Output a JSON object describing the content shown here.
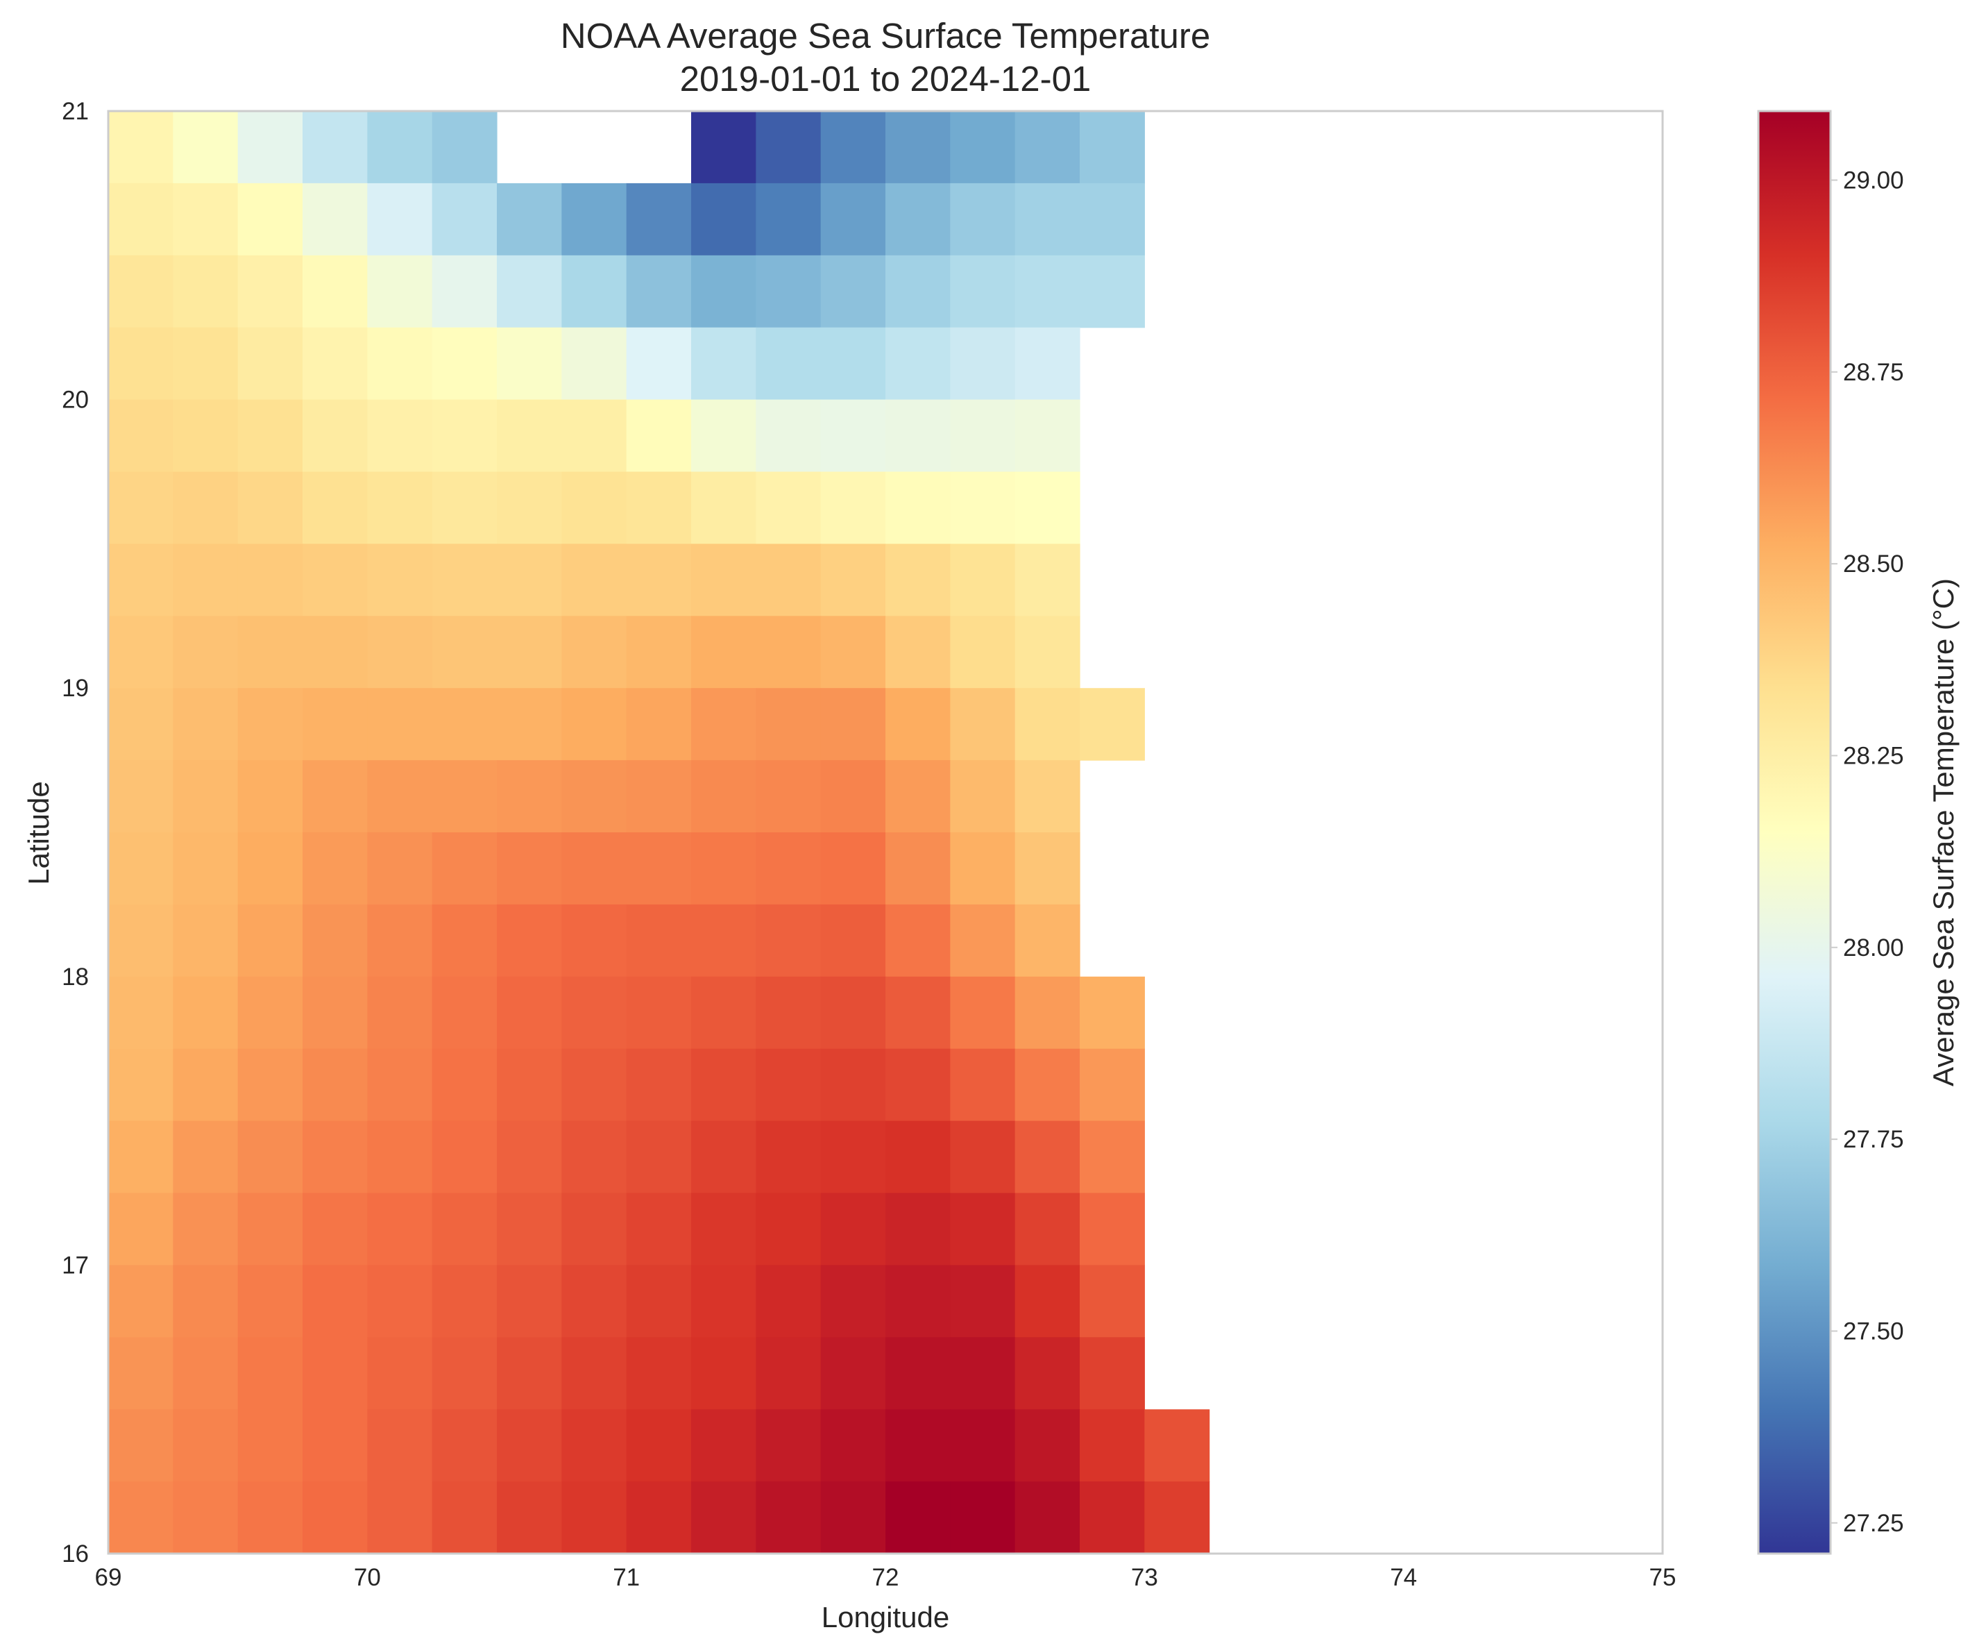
{
  "chart_data": {
    "type": "heatmap",
    "title": "NOAA Average Sea Surface Temperature",
    "subtitle": "2019-01-01 to 2024-12-01",
    "xlabel": "Longitude",
    "ylabel": "Latitude",
    "xlim": [
      69,
      75
    ],
    "ylim": [
      16,
      21
    ],
    "xticks": [
      "69",
      "70",
      "71",
      "72",
      "73",
      "74",
      "75"
    ],
    "yticks": [
      "16",
      "17",
      "18",
      "19",
      "20",
      "21"
    ],
    "cell_size_deg": 0.25,
    "lon_start": 69.0,
    "lat_start": 21.0,
    "lat_step": -0.25,
    "colorbar": {
      "label": "Average Sea Surface Temperature (°C)",
      "min": 27.21,
      "max": 29.09,
      "ticks": [
        "27.25",
        "27.50",
        "27.75",
        "28.00",
        "28.25",
        "28.50",
        "28.75",
        "29.00"
      ],
      "colormap": "RdYlBu_r",
      "colors": [
        "#313695",
        "#4575b4",
        "#74add1",
        "#abd9e9",
        "#e0f3f8",
        "#ffffbf",
        "#fee090",
        "#fdae61",
        "#f46d43",
        "#d73027",
        "#a50026"
      ]
    },
    "rows": [
      [
        28.21,
        28.13,
        28.0,
        27.86,
        27.76,
        27.71,
        null,
        null,
        null,
        27.21,
        27.33,
        27.45,
        27.53,
        27.58,
        27.63,
        27.7
      ],
      [
        28.25,
        28.23,
        28.17,
        28.05,
        27.94,
        27.82,
        27.69,
        27.57,
        27.46,
        27.37,
        27.43,
        27.54,
        27.64,
        27.71,
        27.74,
        27.74
      ],
      [
        28.3,
        28.28,
        28.24,
        28.18,
        28.07,
        28.0,
        27.88,
        27.77,
        27.67,
        27.61,
        27.63,
        27.67,
        27.74,
        27.79,
        27.81,
        27.81
      ],
      [
        28.33,
        28.32,
        28.27,
        28.22,
        28.18,
        28.16,
        28.12,
        28.06,
        27.96,
        27.85,
        27.8,
        27.8,
        27.85,
        27.89,
        27.92,
        null
      ],
      [
        28.36,
        28.35,
        28.33,
        28.27,
        28.24,
        28.23,
        28.25,
        28.25,
        28.17,
        28.08,
        28.03,
        28.02,
        28.03,
        28.04,
        28.05,
        null
      ],
      [
        28.38,
        28.39,
        28.37,
        28.33,
        28.31,
        28.29,
        28.3,
        28.32,
        28.31,
        28.26,
        28.23,
        28.2,
        28.17,
        28.16,
        28.15,
        null
      ],
      [
        28.41,
        28.42,
        28.42,
        28.41,
        28.4,
        28.39,
        28.39,
        28.41,
        28.41,
        28.42,
        28.42,
        28.4,
        28.36,
        28.32,
        28.27,
        null
      ],
      [
        28.43,
        28.45,
        28.46,
        28.46,
        28.45,
        28.44,
        28.44,
        28.47,
        28.49,
        28.52,
        28.52,
        28.5,
        28.42,
        28.35,
        28.3,
        null
      ],
      [
        28.44,
        28.47,
        28.5,
        28.51,
        28.51,
        28.51,
        28.51,
        28.53,
        28.55,
        28.59,
        28.6,
        28.6,
        28.53,
        28.44,
        28.35,
        28.33
      ],
      [
        28.45,
        28.48,
        28.52,
        28.56,
        28.58,
        28.58,
        28.59,
        28.6,
        28.61,
        28.63,
        28.64,
        28.65,
        28.58,
        28.48,
        28.4
      ],
      [
        28.46,
        28.49,
        28.53,
        28.58,
        28.61,
        28.64,
        28.66,
        28.67,
        28.67,
        28.68,
        28.69,
        28.7,
        28.62,
        28.52,
        28.44
      ],
      [
        28.47,
        28.5,
        28.55,
        28.6,
        28.64,
        28.68,
        28.71,
        28.73,
        28.74,
        28.74,
        28.75,
        28.76,
        28.69,
        28.59,
        28.5
      ],
      [
        28.48,
        28.52,
        28.57,
        28.61,
        28.65,
        28.69,
        28.73,
        28.75,
        28.76,
        28.78,
        28.8,
        28.81,
        28.77,
        28.68,
        28.58,
        28.52
      ],
      [
        28.49,
        28.54,
        28.59,
        28.63,
        28.66,
        28.7,
        28.74,
        28.77,
        28.79,
        28.82,
        28.84,
        28.85,
        28.83,
        28.76,
        28.67,
        28.59
      ],
      [
        28.52,
        28.58,
        28.62,
        28.66,
        28.68,
        28.71,
        28.75,
        28.79,
        28.81,
        28.85,
        28.88,
        28.89,
        28.9,
        28.86,
        28.77,
        28.66
      ],
      [
        28.55,
        28.61,
        28.65,
        28.69,
        28.71,
        28.74,
        28.77,
        28.81,
        28.84,
        28.88,
        28.9,
        28.93,
        28.95,
        28.93,
        28.85,
        28.73
      ],
      [
        28.58,
        28.63,
        28.67,
        28.71,
        28.73,
        28.76,
        28.79,
        28.83,
        28.86,
        28.89,
        28.93,
        28.97,
        28.99,
        28.98,
        28.9,
        28.78
      ],
      [
        28.6,
        28.64,
        28.68,
        28.71,
        28.74,
        28.77,
        28.81,
        28.85,
        28.88,
        28.9,
        28.94,
        28.99,
        29.02,
        29.02,
        28.95,
        28.85
      ],
      [
        28.62,
        28.65,
        28.68,
        28.71,
        28.75,
        28.79,
        28.83,
        28.87,
        28.9,
        28.94,
        28.98,
        29.02,
        29.05,
        29.05,
        29.0,
        28.89,
        28.8
      ],
      [
        28.64,
        28.66,
        28.69,
        28.72,
        28.75,
        28.8,
        28.85,
        28.88,
        28.92,
        28.97,
        29.01,
        29.04,
        29.09,
        29.09,
        29.04,
        28.94,
        28.86
      ]
    ]
  }
}
